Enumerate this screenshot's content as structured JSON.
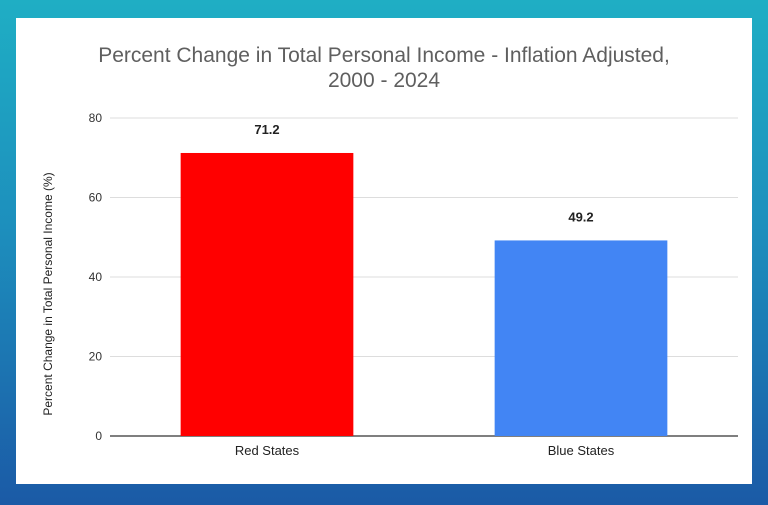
{
  "chart_data": {
    "type": "bar",
    "title_line1": "Percent Change in Total Personal Income - Inflation Adjusted,",
    "title_line2": "2000 - 2024",
    "xlabel": "",
    "ylabel": "Percent Change in Total Personal Income (%)",
    "categories": [
      "Red States",
      "Blue States"
    ],
    "values": [
      71.2,
      49.2
    ],
    "value_labels": [
      "71.2",
      "49.2"
    ],
    "bar_colors": [
      "#ff0000",
      "#4285f4"
    ],
    "ylim": [
      0,
      80
    ],
    "yticks": [
      0,
      20,
      40,
      60,
      80
    ],
    "grid": true,
    "legend": "none"
  },
  "colors": {
    "background_top": "#1faec4",
    "background_bottom": "#1b5aa6",
    "card": "#ffffff",
    "gridline": "#dddddd",
    "axis": "#333333",
    "title": "#5f5f5f"
  }
}
